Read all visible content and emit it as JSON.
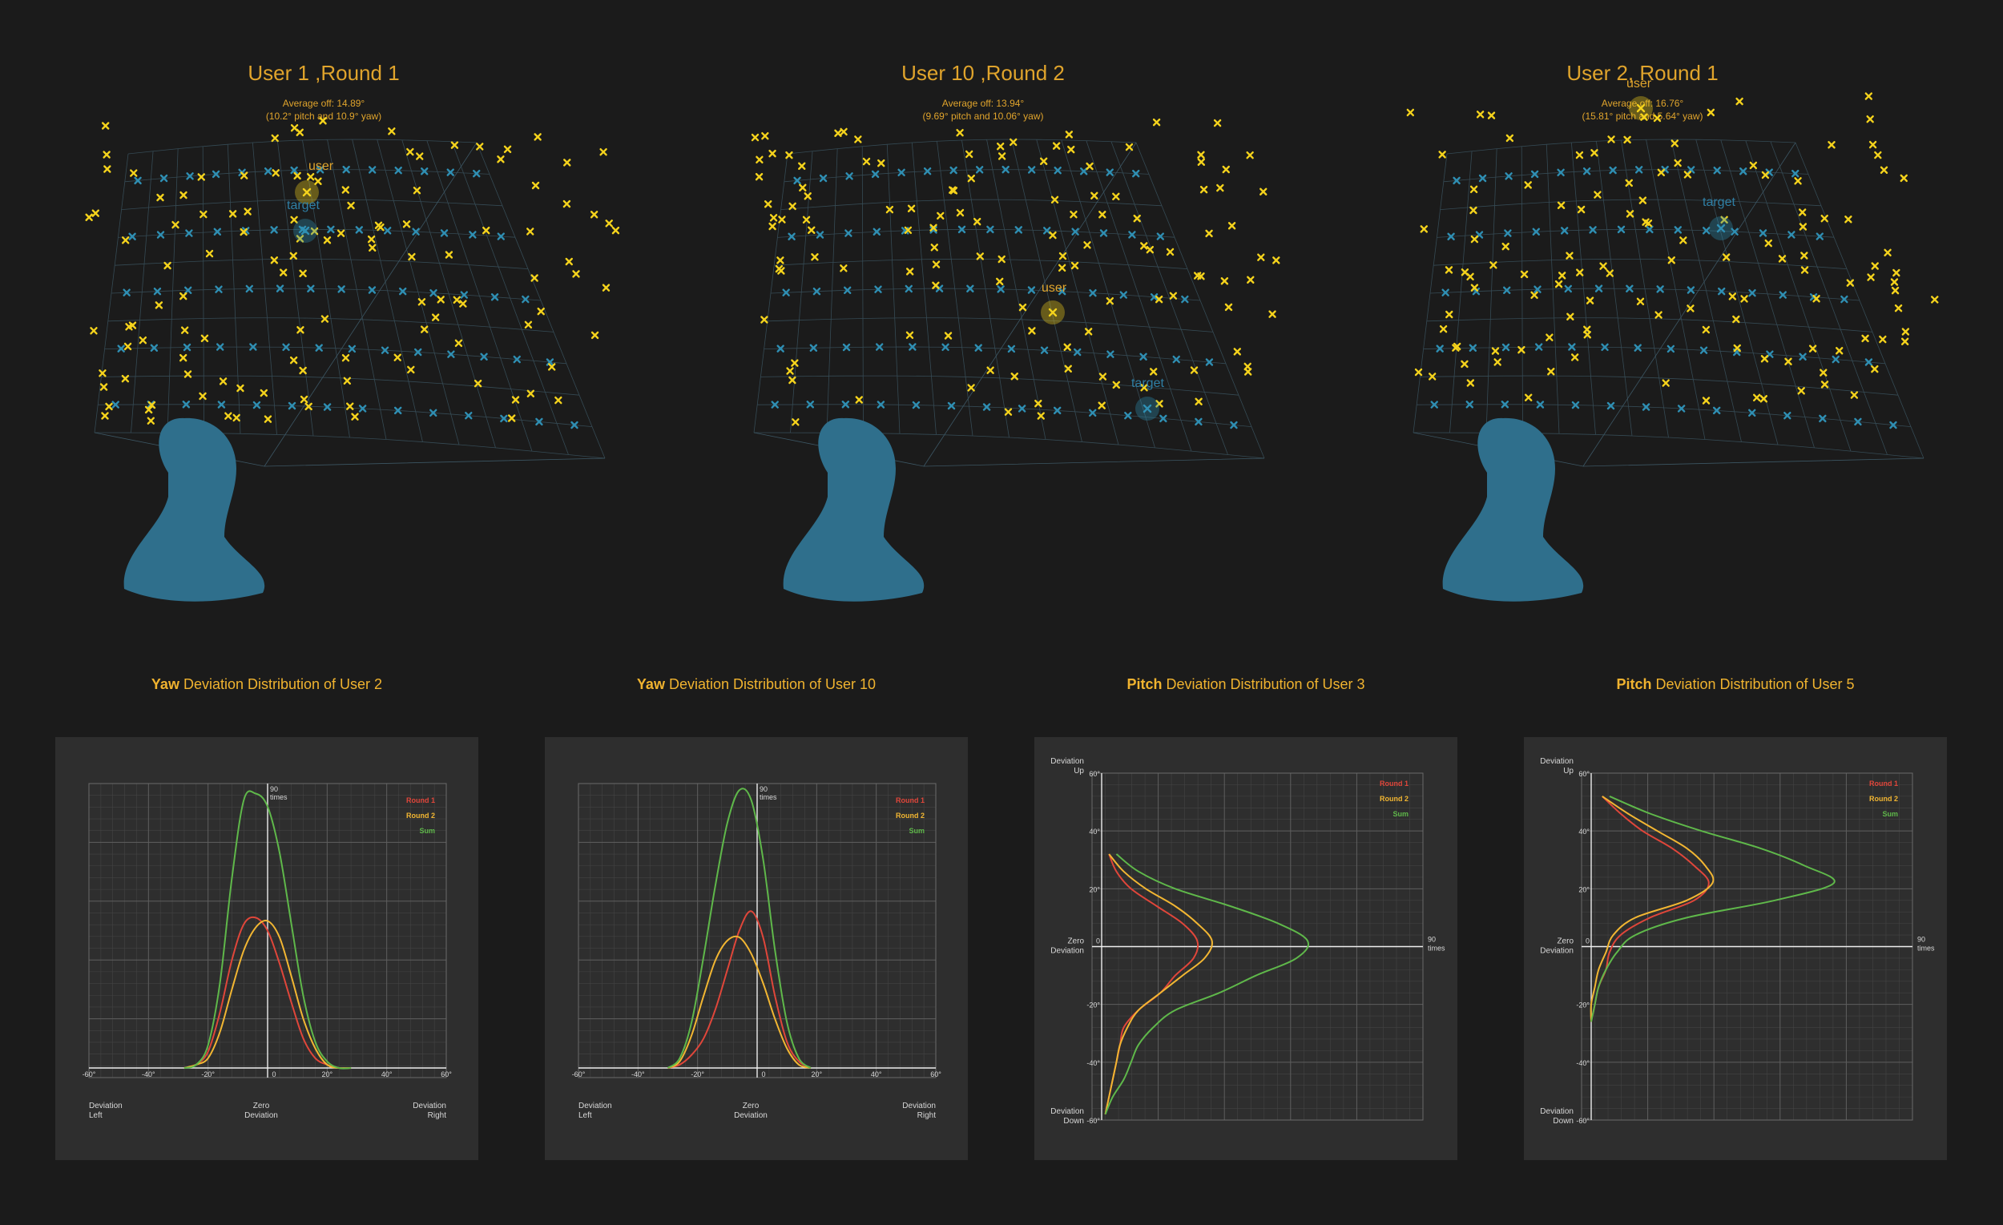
{
  "scenes": [
    {
      "title": "User 1 ,Round 1",
      "average_line1": "Average off: 14.89°",
      "average_line2": "(10.2° pitch and 10.9° yaw)",
      "user_label": "user",
      "target_label": "target"
    },
    {
      "title": "User 10 ,Round 2",
      "average_line1": "Average off: 13.94°",
      "average_line2": "(9.69° pitch and 10.06° yaw)",
      "user_label": "user",
      "target_label": "target"
    },
    {
      "title": "User 2, Round 1",
      "average_line1": "Average off: 16.76°",
      "average_line2": "(15.81° pitch and 5.64° yaw)",
      "user_label": "user",
      "target_label": "target"
    }
  ],
  "colors": {
    "background": "#1b1b1b",
    "panel": "#2e2e2e",
    "target_marker": "#2f8fb3",
    "user_marker": "#f5d31c",
    "head": "#2f6f8c",
    "round1": "#e0463a",
    "round2": "#f2b632",
    "sum": "#5fb84a",
    "title": "#e0a42c"
  },
  "chart_data": [
    {
      "type": "line",
      "orientation": "yaw",
      "title_bold": "Yaw",
      "title_rest": " Deviation Distribution of User 2",
      "x_ticks": [
        "-60°",
        "-40°",
        "-20°",
        "0",
        "20°",
        "40°",
        "60°"
      ],
      "xlim": [
        -60,
        60
      ],
      "ylim": [
        0,
        90
      ],
      "max_label_1": "90",
      "max_label_2": "times",
      "axis_left_1": "Deviation",
      "axis_left_2": "Left",
      "axis_center_1": "Zero",
      "axis_center_2": "Deviation",
      "axis_right_1": "Deviation",
      "axis_right_2": "Right",
      "legend": [
        "Round 1",
        "Round 2",
        "Sum"
      ],
      "x": [
        -28,
        -24,
        -20,
        -16,
        -12,
        -8,
        -4,
        0,
        4,
        8,
        12,
        16,
        20,
        24,
        28
      ],
      "series": [
        {
          "name": "Round 1",
          "values": [
            0,
            1,
            5,
            17,
            33,
            44,
            46,
            42,
            32,
            20,
            9,
            3,
            1,
            0,
            0
          ]
        },
        {
          "name": "Round 2",
          "values": [
            0,
            1,
            3,
            11,
            24,
            36,
            43,
            45,
            40,
            28,
            15,
            6,
            1,
            0,
            0
          ]
        },
        {
          "name": "Sum",
          "values": [
            0,
            1,
            7,
            26,
            58,
            82,
            84,
            80,
            66,
            44,
            22,
            8,
            2,
            0,
            0
          ]
        }
      ]
    },
    {
      "type": "line",
      "orientation": "yaw",
      "title_bold": "Yaw",
      "title_rest": " Deviation Distribution of User 10",
      "x_ticks": [
        "-60°",
        "-40°",
        "-20°",
        "0",
        "20°",
        "40°",
        "60°"
      ],
      "xlim": [
        -60,
        60
      ],
      "ylim": [
        0,
        90
      ],
      "max_label_1": "90",
      "max_label_2": "times",
      "axis_left_1": "Deviation",
      "axis_left_2": "Left",
      "axis_center_1": "Zero",
      "axis_center_2": "Deviation",
      "axis_right_1": "Deviation",
      "axis_right_2": "Right",
      "legend": [
        "Round 1",
        "Round 2",
        "Sum"
      ],
      "x": [
        -30,
        -26,
        -22,
        -18,
        -14,
        -10,
        -6,
        -2,
        2,
        6,
        10,
        14,
        18
      ],
      "series": [
        {
          "name": "Round 1",
          "values": [
            0,
            1,
            4,
            9,
            18,
            30,
            42,
            48,
            40,
            22,
            8,
            2,
            0
          ]
        },
        {
          "name": "Round 2",
          "values": [
            0,
            2,
            10,
            22,
            33,
            39,
            40,
            35,
            26,
            15,
            6,
            1,
            0
          ]
        },
        {
          "name": "Sum",
          "values": [
            0,
            3,
            14,
            34,
            56,
            75,
            85,
            82,
            64,
            36,
            14,
            3,
            0
          ]
        }
      ]
    },
    {
      "type": "line",
      "orientation": "pitch",
      "title_bold": "Pitch",
      "title_rest": " Deviation Distribution of User 3",
      "y_ticks": [
        "60°",
        "40°",
        "20°",
        "0",
        "-20°",
        "-40°",
        "-60°"
      ],
      "ylim": [
        -60,
        60
      ],
      "xlim": [
        0,
        90
      ],
      "max_label_1": "90",
      "max_label_2": "times",
      "axis_top_1": "Deviation",
      "axis_top_2": "Up",
      "axis_center_1": "Zero",
      "axis_center_2": "Deviation",
      "axis_bottom_1": "Deviation",
      "axis_bottom_2": "Down",
      "legend": [
        "Round 1",
        "Round 2",
        "Sum"
      ],
      "y": [
        32,
        26,
        20,
        14,
        8,
        2,
        -4,
        -10,
        -16,
        -22,
        -28,
        -34,
        -40,
        -46,
        -52,
        -58
      ],
      "series": [
        {
          "name": "Round 1",
          "values": [
            2,
            4,
            8,
            15,
            22,
            26,
            25,
            20,
            16,
            10,
            6,
            5,
            4,
            3,
            2,
            1
          ]
        },
        {
          "name": "Round 2",
          "values": [
            2,
            6,
            12,
            20,
            26,
            30,
            28,
            22,
            16,
            10,
            7,
            5,
            4,
            3,
            2,
            1
          ]
        },
        {
          "name": "Sum",
          "values": [
            4,
            10,
            20,
            35,
            48,
            56,
            53,
            42,
            32,
            20,
            14,
            10,
            8,
            6,
            3,
            1
          ]
        }
      ]
    },
    {
      "type": "line",
      "orientation": "pitch",
      "title_bold": "Pitch",
      "title_rest": " Deviation Distribution of User 5",
      "y_ticks": [
        "60°",
        "40°",
        "20°",
        "0",
        "-20°",
        "-40°",
        "-60°"
      ],
      "ylim": [
        -60,
        60
      ],
      "xlim": [
        0,
        90
      ],
      "max_label_1": "90",
      "max_label_2": "times",
      "axis_top_1": "Deviation",
      "axis_top_2": "Up",
      "axis_center_1": "Zero",
      "axis_center_2": "Deviation",
      "axis_bottom_1": "Deviation",
      "axis_bottom_2": "Down",
      "legend": [
        "Round 1",
        "Round 2",
        "Sum"
      ],
      "y": [
        52,
        46,
        40,
        34,
        28,
        22,
        16,
        10,
        4,
        -2,
        -8,
        -14,
        -20,
        -26
      ],
      "series": [
        {
          "name": "Round 1",
          "values": [
            3,
            8,
            14,
            22,
            28,
            32,
            28,
            16,
            8,
            5,
            4,
            2,
            1,
            0
          ]
        },
        {
          "name": "Round 2",
          "values": [
            3,
            10,
            18,
            26,
            31,
            33,
            26,
            12,
            6,
            4,
            2,
            1,
            0,
            0
          ]
        },
        {
          "name": "Sum",
          "values": [
            5,
            16,
            30,
            46,
            58,
            66,
            50,
            26,
            12,
            7,
            4,
            2,
            1,
            0
          ]
        }
      ]
    }
  ]
}
